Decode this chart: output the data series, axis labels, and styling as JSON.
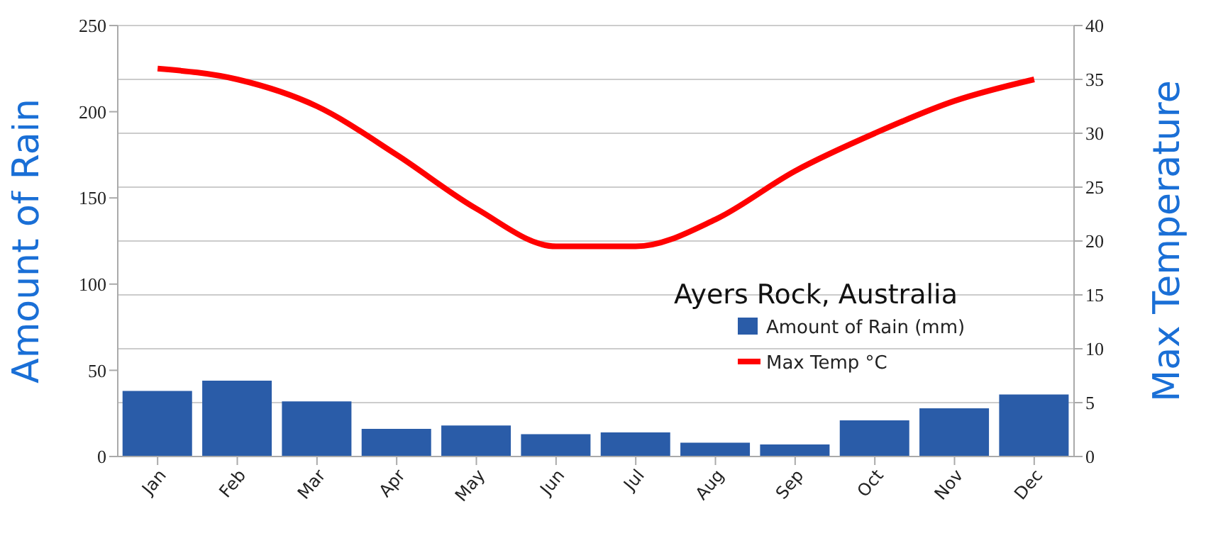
{
  "chart_data": {
    "type": "bar",
    "title": "Ayers Rock, Australia",
    "ylabel": "Amount of Rain",
    "y2label": "Max Temperature",
    "categories": [
      "Jan",
      "Feb",
      "Mar",
      "Apr",
      "May",
      "Jun",
      "Jul",
      "Aug",
      "Sep",
      "Oct",
      "Nov",
      "Dec"
    ],
    "series": [
      {
        "name": "Amount of Rain (mm)",
        "color": "#2a5ca8",
        "values": [
          38,
          44,
          32,
          16,
          18,
          13,
          14,
          8,
          7,
          21,
          28,
          36
        ]
      },
      {
        "name": "Max Temp °C",
        "type": "line",
        "axis": "y2",
        "color": "#ff0000",
        "values": [
          36,
          35,
          32.5,
          28,
          23,
          19.5,
          19.5,
          22,
          26.5,
          30,
          33,
          35
        ]
      }
    ],
    "ylim": [
      0,
      250
    ],
    "yticks": [
      0,
      50,
      100,
      150,
      200,
      250
    ],
    "y2lim": [
      0,
      40
    ],
    "y2ticks": [
      0,
      5,
      10,
      15,
      20,
      25,
      30,
      35,
      40
    ],
    "grid": "y",
    "legend": "right"
  }
}
